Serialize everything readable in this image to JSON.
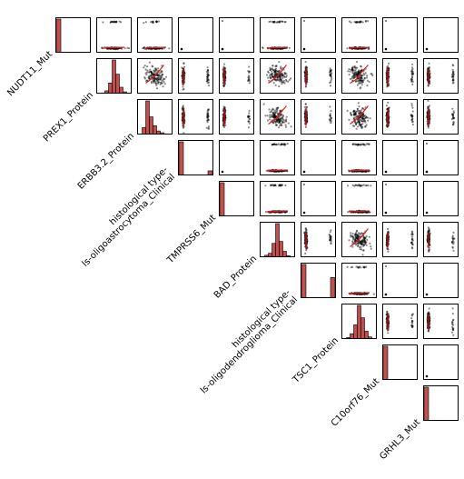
{
  "chart_data": {
    "type": "scatter",
    "subtype": "scatterplot-matrix",
    "layout": "upper-triangle",
    "title": "",
    "variables": [
      "NUDT11_Mut",
      "PREX1_Protein",
      "ERBB3.2_Protein",
      "histological type-\nls-oligoastrocytoma_Clinical",
      "TMPRSS6_Mut",
      "BAD_Protein",
      "histological type-\nls-oligodendroglioma_Clinical",
      "TSC1_Protein",
      "C10orf76_Mut",
      "GRHL3_Mut"
    ],
    "variable_kinds": [
      "binary",
      "continuous",
      "continuous",
      "binary",
      "binary",
      "continuous",
      "binary",
      "continuous",
      "binary",
      "binary"
    ],
    "diagonal": "histogram",
    "diagonal_histograms": [
      {
        "variable": "NUDT11_Mut",
        "bins": [
          0,
          1
        ],
        "values": [
          0.99,
          0.01
        ]
      },
      {
        "variable": "PREX1_Protein",
        "bins": [
          -3,
          -2,
          -1,
          0,
          1,
          2,
          3
        ],
        "values": [
          0.02,
          0.08,
          0.3,
          0.95,
          0.55,
          0.18,
          0.05
        ]
      },
      {
        "variable": "ERBB3.2_Protein",
        "bins": [
          -2,
          -1,
          0,
          1,
          2,
          3,
          4
        ],
        "values": [
          0.2,
          0.95,
          0.5,
          0.25,
          0.1,
          0.05,
          0.02
        ]
      },
      {
        "variable": "histological type-ls-oligoastrocytoma_Clinical",
        "bins": [
          0,
          1
        ],
        "values": [
          0.88,
          0.12
        ]
      },
      {
        "variable": "TMPRSS6_Mut",
        "bins": [
          0,
          1
        ],
        "values": [
          0.99,
          0.01
        ]
      },
      {
        "variable": "BAD_Protein",
        "bins": [
          -3,
          -2,
          -1,
          0,
          1,
          2,
          3
        ],
        "values": [
          0.05,
          0.1,
          0.35,
          0.85,
          0.4,
          0.15,
          0.04
        ]
      },
      {
        "variable": "histological type-ls-oligodendroglioma_Clinical",
        "bins": [
          0,
          1
        ],
        "values": [
          0.62,
          0.38
        ]
      },
      {
        "variable": "TSC1_Protein",
        "bins": [
          -3,
          -2,
          -1,
          0,
          1,
          2,
          3
        ],
        "values": [
          0.04,
          0.15,
          0.4,
          0.95,
          0.6,
          0.22,
          0.06
        ]
      },
      {
        "variable": "C10orf76_Mut",
        "bins": [
          0,
          1
        ],
        "values": [
          1.0,
          0.0
        ]
      },
      {
        "variable": "GRHL3_Mut",
        "bins": [
          0,
          1
        ],
        "values": [
          1.0,
          0.0
        ]
      }
    ],
    "off_diagonal": "scatter with red lowess line",
    "point_color": "#000000",
    "fit_line_color": "#e41a1c",
    "bar_color": "#c0504d",
    "grid": false,
    "legend": "none"
  }
}
